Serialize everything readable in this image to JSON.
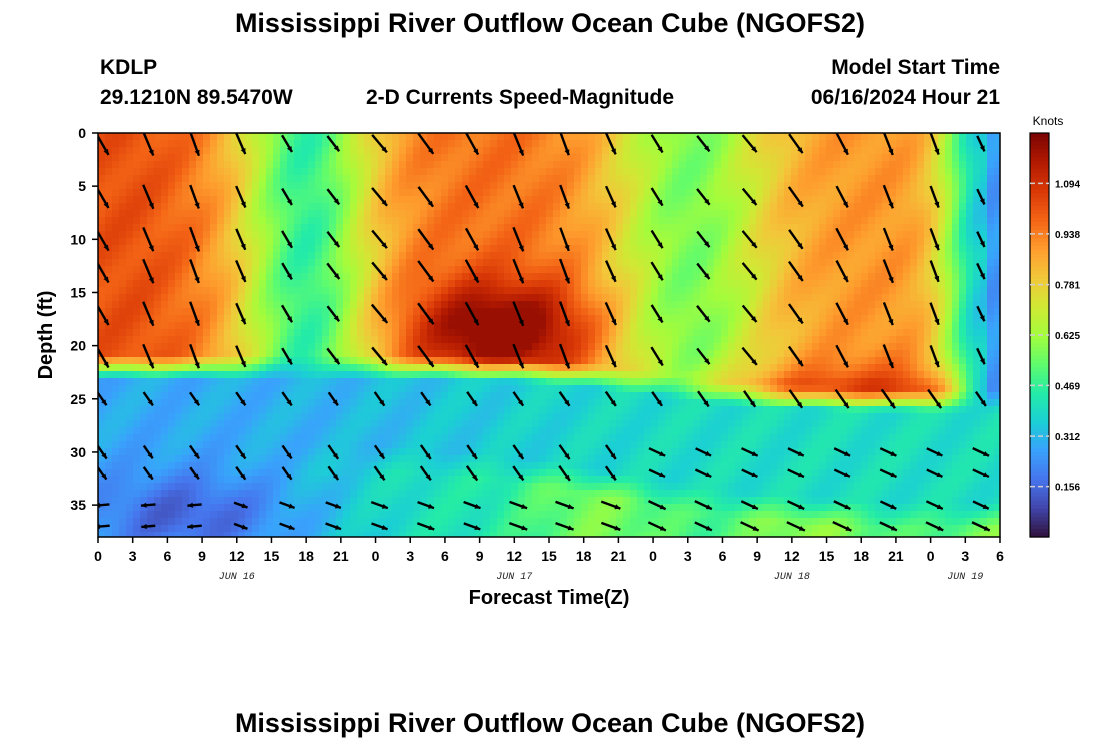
{
  "header": {
    "title": "Mississippi River Outflow Ocean Cube (NGOFS2)",
    "station_id": "KDLP",
    "coords": "29.1210N  89.5470W",
    "subtitle": "2-D Currents Speed-Magnitude",
    "model_start_label": "Model Start Time",
    "model_start_value": "06/16/2024 Hour 21"
  },
  "footer": {
    "title": "Mississippi River Outflow Ocean Cube (NGOFS2)"
  },
  "chart_data": {
    "type": "heatmap",
    "title": "2-D Currents Speed-Magnitude",
    "xlabel": "Forecast Time(Z)",
    "ylabel": "Depth (ft)",
    "x_hours": [
      0,
      78
    ],
    "y_depth_ft": [
      0,
      38
    ],
    "y_ticks": [
      "0",
      "5",
      "10",
      "15",
      "20",
      "25",
      "30",
      "35"
    ],
    "x_tick_labels": [
      "0",
      "3",
      "6",
      "9",
      "12",
      "15",
      "18",
      "21",
      "0",
      "3",
      "6",
      "9",
      "12",
      "15",
      "18",
      "21",
      "0",
      "3",
      "6",
      "9",
      "12",
      "15",
      "18",
      "21",
      "0",
      "3",
      "6"
    ],
    "date_labels": [
      {
        "text": "JUN 16",
        "hour": 12
      },
      {
        "text": "JUN 17",
        "hour": 36
      },
      {
        "text": "JUN 18",
        "hour": 60
      },
      {
        "text": "JUN 19",
        "hour": 75
      }
    ],
    "colorbar": {
      "unit": "Knots",
      "range": [
        0.0,
        1.25
      ],
      "ticks": [
        "1.094",
        "0.938",
        "0.781",
        "0.625",
        "0.469",
        "0.312",
        "0.156"
      ],
      "tick_values": [
        1.094,
        0.938,
        0.781,
        0.625,
        0.469,
        0.312,
        0.156
      ],
      "colors": [
        "#30123b",
        "#4145ab",
        "#4675ed",
        "#39a2fc",
        "#1bcfd4",
        "#24eca6",
        "#61fc6c",
        "#a4fc3b",
        "#d1e834",
        "#f3c63a",
        "#fe9b2d",
        "#f36315",
        "#d93806",
        "#b11901",
        "#7a0403"
      ]
    },
    "vector_times_h": [
      0,
      4,
      8,
      12,
      16,
      20,
      24,
      28,
      32,
      36,
      40,
      44,
      48,
      52,
      56,
      60,
      64,
      68,
      72,
      76
    ],
    "vector_depths_ft": [
      1,
      6,
      10,
      13,
      17,
      21,
      25,
      30,
      32,
      35,
      37
    ]
  }
}
